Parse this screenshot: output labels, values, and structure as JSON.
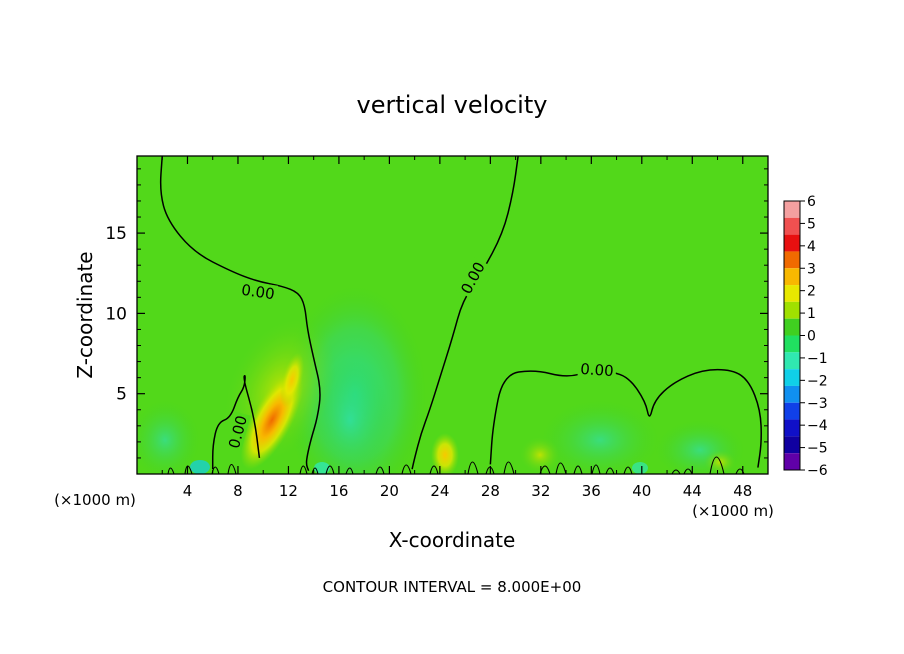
{
  "chart_data": {
    "type": "heatmap",
    "title": "vertical velocity",
    "xlabel": "X-coordinate",
    "ylabel": "Z-coordinate",
    "x_unit": "(×1000 m)",
    "y_unit": "(×1000 m)",
    "xlim": [
      0,
      50
    ],
    "ylim": [
      0,
      19.8
    ],
    "x_ticks": [
      4,
      8,
      12,
      16,
      20,
      24,
      28,
      32,
      36,
      40,
      44,
      48
    ],
    "y_ticks": [
      5,
      10,
      15
    ],
    "colorbar": {
      "levels": [
        6,
        5,
        4,
        3,
        2,
        1,
        0,
        -1,
        -2,
        -3,
        -4,
        -5,
        -6
      ],
      "colors": [
        "#f4a0a0",
        "#f05050",
        "#e81010",
        "#f06a00",
        "#f8b800",
        "#e8e800",
        "#a0e000",
        "#40d020",
        "#20e060",
        "#30e8b0",
        "#10d0e8",
        "#1090f0",
        "#1040e8",
        "#1010c8",
        "#1000a0",
        "#6000a8"
      ]
    },
    "contours": [
      {
        "level_label": "0.00",
        "x": [
          2.0,
          1.8,
          2.4,
          4.5,
          7.5,
          9.5,
          11.5,
          12.8,
          13.3,
          13.5,
          14.0,
          14.6,
          14.3,
          13.8,
          13.5,
          13.4,
          13.6
        ],
        "y": [
          19.8,
          17.6,
          15.8,
          13.8,
          12.6,
          12.0,
          11.7,
          11.3,
          10.5,
          9.0,
          7.2,
          5.2,
          3.5,
          2.2,
          1.2,
          0.6,
          0.2
        ]
      },
      {
        "level_label": "0.00",
        "x": [
          30.2,
          29.8,
          29.0,
          27.3,
          25.8,
          25.0,
          24.0,
          23.2,
          22.5,
          22.0,
          21.8
        ],
        "y": [
          19.8,
          17.5,
          15.0,
          12.5,
          10.8,
          8.5,
          6.0,
          4.0,
          2.5,
          1.0,
          0.3
        ]
      },
      {
        "level_label": "0.00",
        "x": [
          28.0,
          28.2,
          29.0,
          31.5,
          34.0,
          36.0,
          37.5,
          39.0,
          40.3,
          40.6,
          41.0,
          42.5,
          44.8,
          47.2,
          48.5,
          49.4,
          49.5,
          49.2
        ],
        "y": [
          0.6,
          3.0,
          6.2,
          6.5,
          6.0,
          6.4,
          6.4,
          6.0,
          4.5,
          3.3,
          4.6,
          5.7,
          6.5,
          6.5,
          5.8,
          4.0,
          2.0,
          0.4
        ]
      },
      {
        "level_label": "0.00",
        "x": [
          6.0,
          6.0,
          6.4,
          7.4,
          8.0,
          8.5,
          8.6,
          8.4,
          9.3,
          9.7
        ],
        "y": [
          0.3,
          1.8,
          3.2,
          3.5,
          4.8,
          5.4,
          6.2,
          6.0,
          3.5,
          1.0
        ]
      }
    ],
    "annotations": [
      "CONTOUR INTERVAL = 8.000E+00"
    ]
  }
}
